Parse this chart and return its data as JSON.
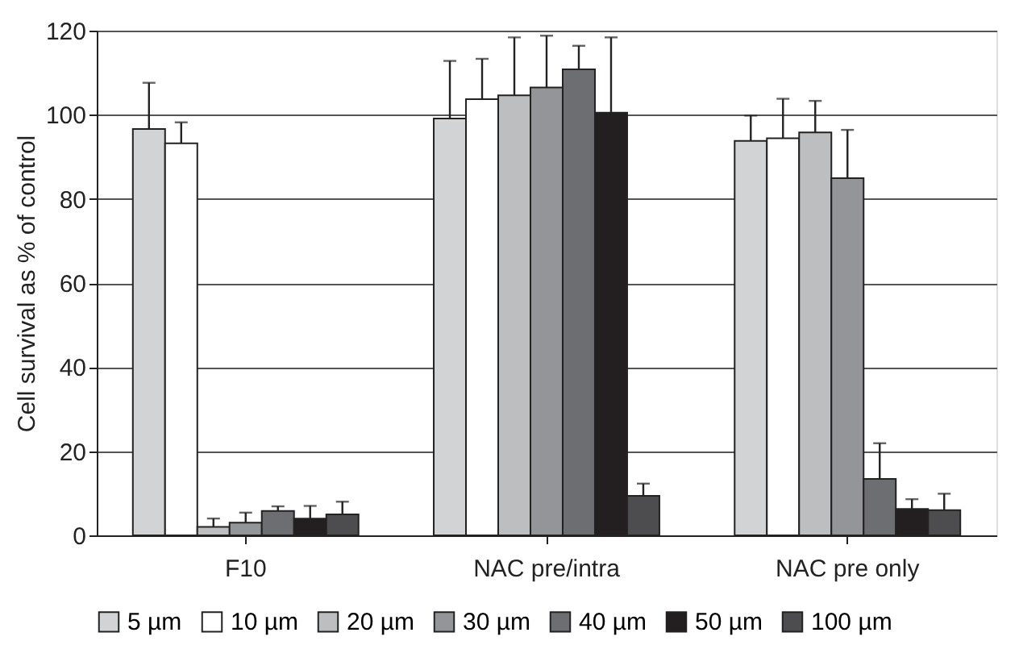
{
  "chart_data": {
    "type": "bar",
    "ylabel": "Cell survival as % of control",
    "categories": [
      "F10",
      "NAC pre/intra",
      "NAC pre only"
    ],
    "ylim": [
      0,
      120
    ],
    "yticks": [
      0,
      20,
      40,
      60,
      80,
      100,
      120
    ],
    "grid": "y",
    "legend": "bottom",
    "series": [
      {
        "name": "5 µm",
        "color": "#d1d3d4",
        "values": [
          96.6,
          99.1,
          93.8
        ],
        "errors": [
          [
            96.6,
            107.6
          ],
          [
            99.1,
            112.8
          ],
          [
            93.8,
            99.8
          ]
        ]
      },
      {
        "name": "10 µm",
        "color": "#ffffff",
        "values": [
          93.2,
          103.7,
          94.4
        ],
        "errors": [
          [
            93.2,
            98.2
          ],
          [
            103.7,
            113.3
          ],
          [
            94.4,
            103.8
          ]
        ]
      },
      {
        "name": "20 µm",
        "color": "#bcbec0",
        "values": [
          2.0,
          104.6,
          95.8
        ],
        "errors": [
          [
            2.0,
            4.0
          ],
          [
            104.6,
            118.4
          ],
          [
            95.8,
            103.3
          ]
        ]
      },
      {
        "name": "30 µm",
        "color": "#939598",
        "values": [
          3.0,
          106.5,
          84.9
        ],
        "errors": [
          [
            3.0,
            5.4
          ],
          [
            106.5,
            118.8
          ],
          [
            84.9,
            96.4
          ]
        ]
      },
      {
        "name": "40 µm",
        "color": "#6d6e71",
        "values": [
          5.8,
          110.8,
          13.4
        ],
        "errors": [
          [
            5.8,
            6.9
          ],
          [
            110.8,
            116.4
          ],
          [
            13.4,
            21.9
          ]
        ]
      },
      {
        "name": "50 µm",
        "color": "#231f20",
        "values": [
          4.0,
          100.5,
          6.3
        ],
        "errors": [
          [
            4.0,
            7.0
          ],
          [
            100.5,
            118.4
          ],
          [
            6.3,
            8.6
          ]
        ]
      },
      {
        "name": "100 µm",
        "color": "#4d4d4f",
        "values": [
          5.0,
          9.4,
          6.0
        ],
        "errors": [
          [
            5.0,
            8.0
          ],
          [
            9.4,
            12.3
          ],
          [
            6.0,
            9.9
          ]
        ]
      }
    ]
  }
}
